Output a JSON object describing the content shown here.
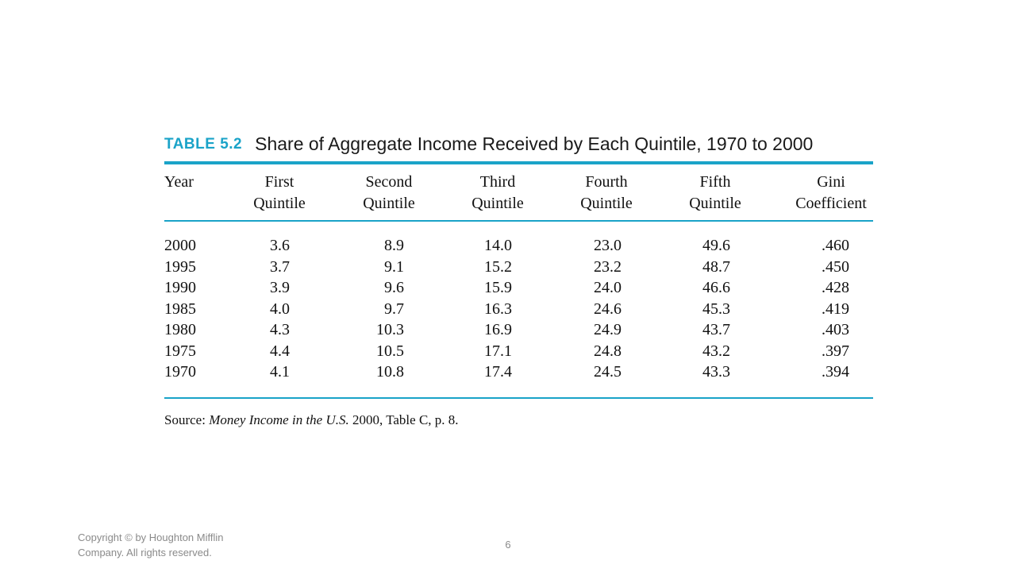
{
  "table": {
    "label": "TABLE 5.2",
    "caption": "Share of Aggregate Income Received by Each Quintile, 1970 to 2000",
    "headers": [
      {
        "line1": "",
        "line2": "Year"
      },
      {
        "line1": "First",
        "line2": "Quintile"
      },
      {
        "line1": "Second",
        "line2": "Quintile"
      },
      {
        "line1": "Third",
        "line2": "Quintile"
      },
      {
        "line1": "Fourth",
        "line2": "Quintile"
      },
      {
        "line1": "Fifth",
        "line2": "Quintile"
      },
      {
        "line1": "Gini",
        "line2": "Coefficient"
      }
    ],
    "rows": [
      [
        "2000",
        "3.6",
        "8.9",
        "14.0",
        "23.0",
        "49.6",
        ".460"
      ],
      [
        "1995",
        "3.7",
        "9.1",
        "15.2",
        "23.2",
        "48.7",
        ".450"
      ],
      [
        "1990",
        "3.9",
        "9.6",
        "15.9",
        "24.0",
        "46.6",
        ".428"
      ],
      [
        "1985",
        "4.0",
        "9.7",
        "16.3",
        "24.6",
        "45.3",
        ".419"
      ],
      [
        "1980",
        "4.3",
        "10.3",
        "16.9",
        "24.9",
        "43.7",
        ".403"
      ],
      [
        "1975",
        "4.4",
        "10.5",
        "17.1",
        "24.8",
        "43.2",
        ".397"
      ],
      [
        "1970",
        "4.1",
        "10.8",
        "17.4",
        "24.5",
        "43.3",
        ".394"
      ]
    ],
    "source_label": "Source:",
    "source_title": "Money Income in the U.S.",
    "source_rest": "2000, Table C, p. 8."
  },
  "footer": {
    "copyright_line1": "Copyright © by Houghton Mifflin",
    "copyright_line2": "Company. All rights reserved.",
    "page_number": "6"
  },
  "colors": {
    "accent": "#1aa3c8",
    "footer_text": "#8a8a8a"
  }
}
